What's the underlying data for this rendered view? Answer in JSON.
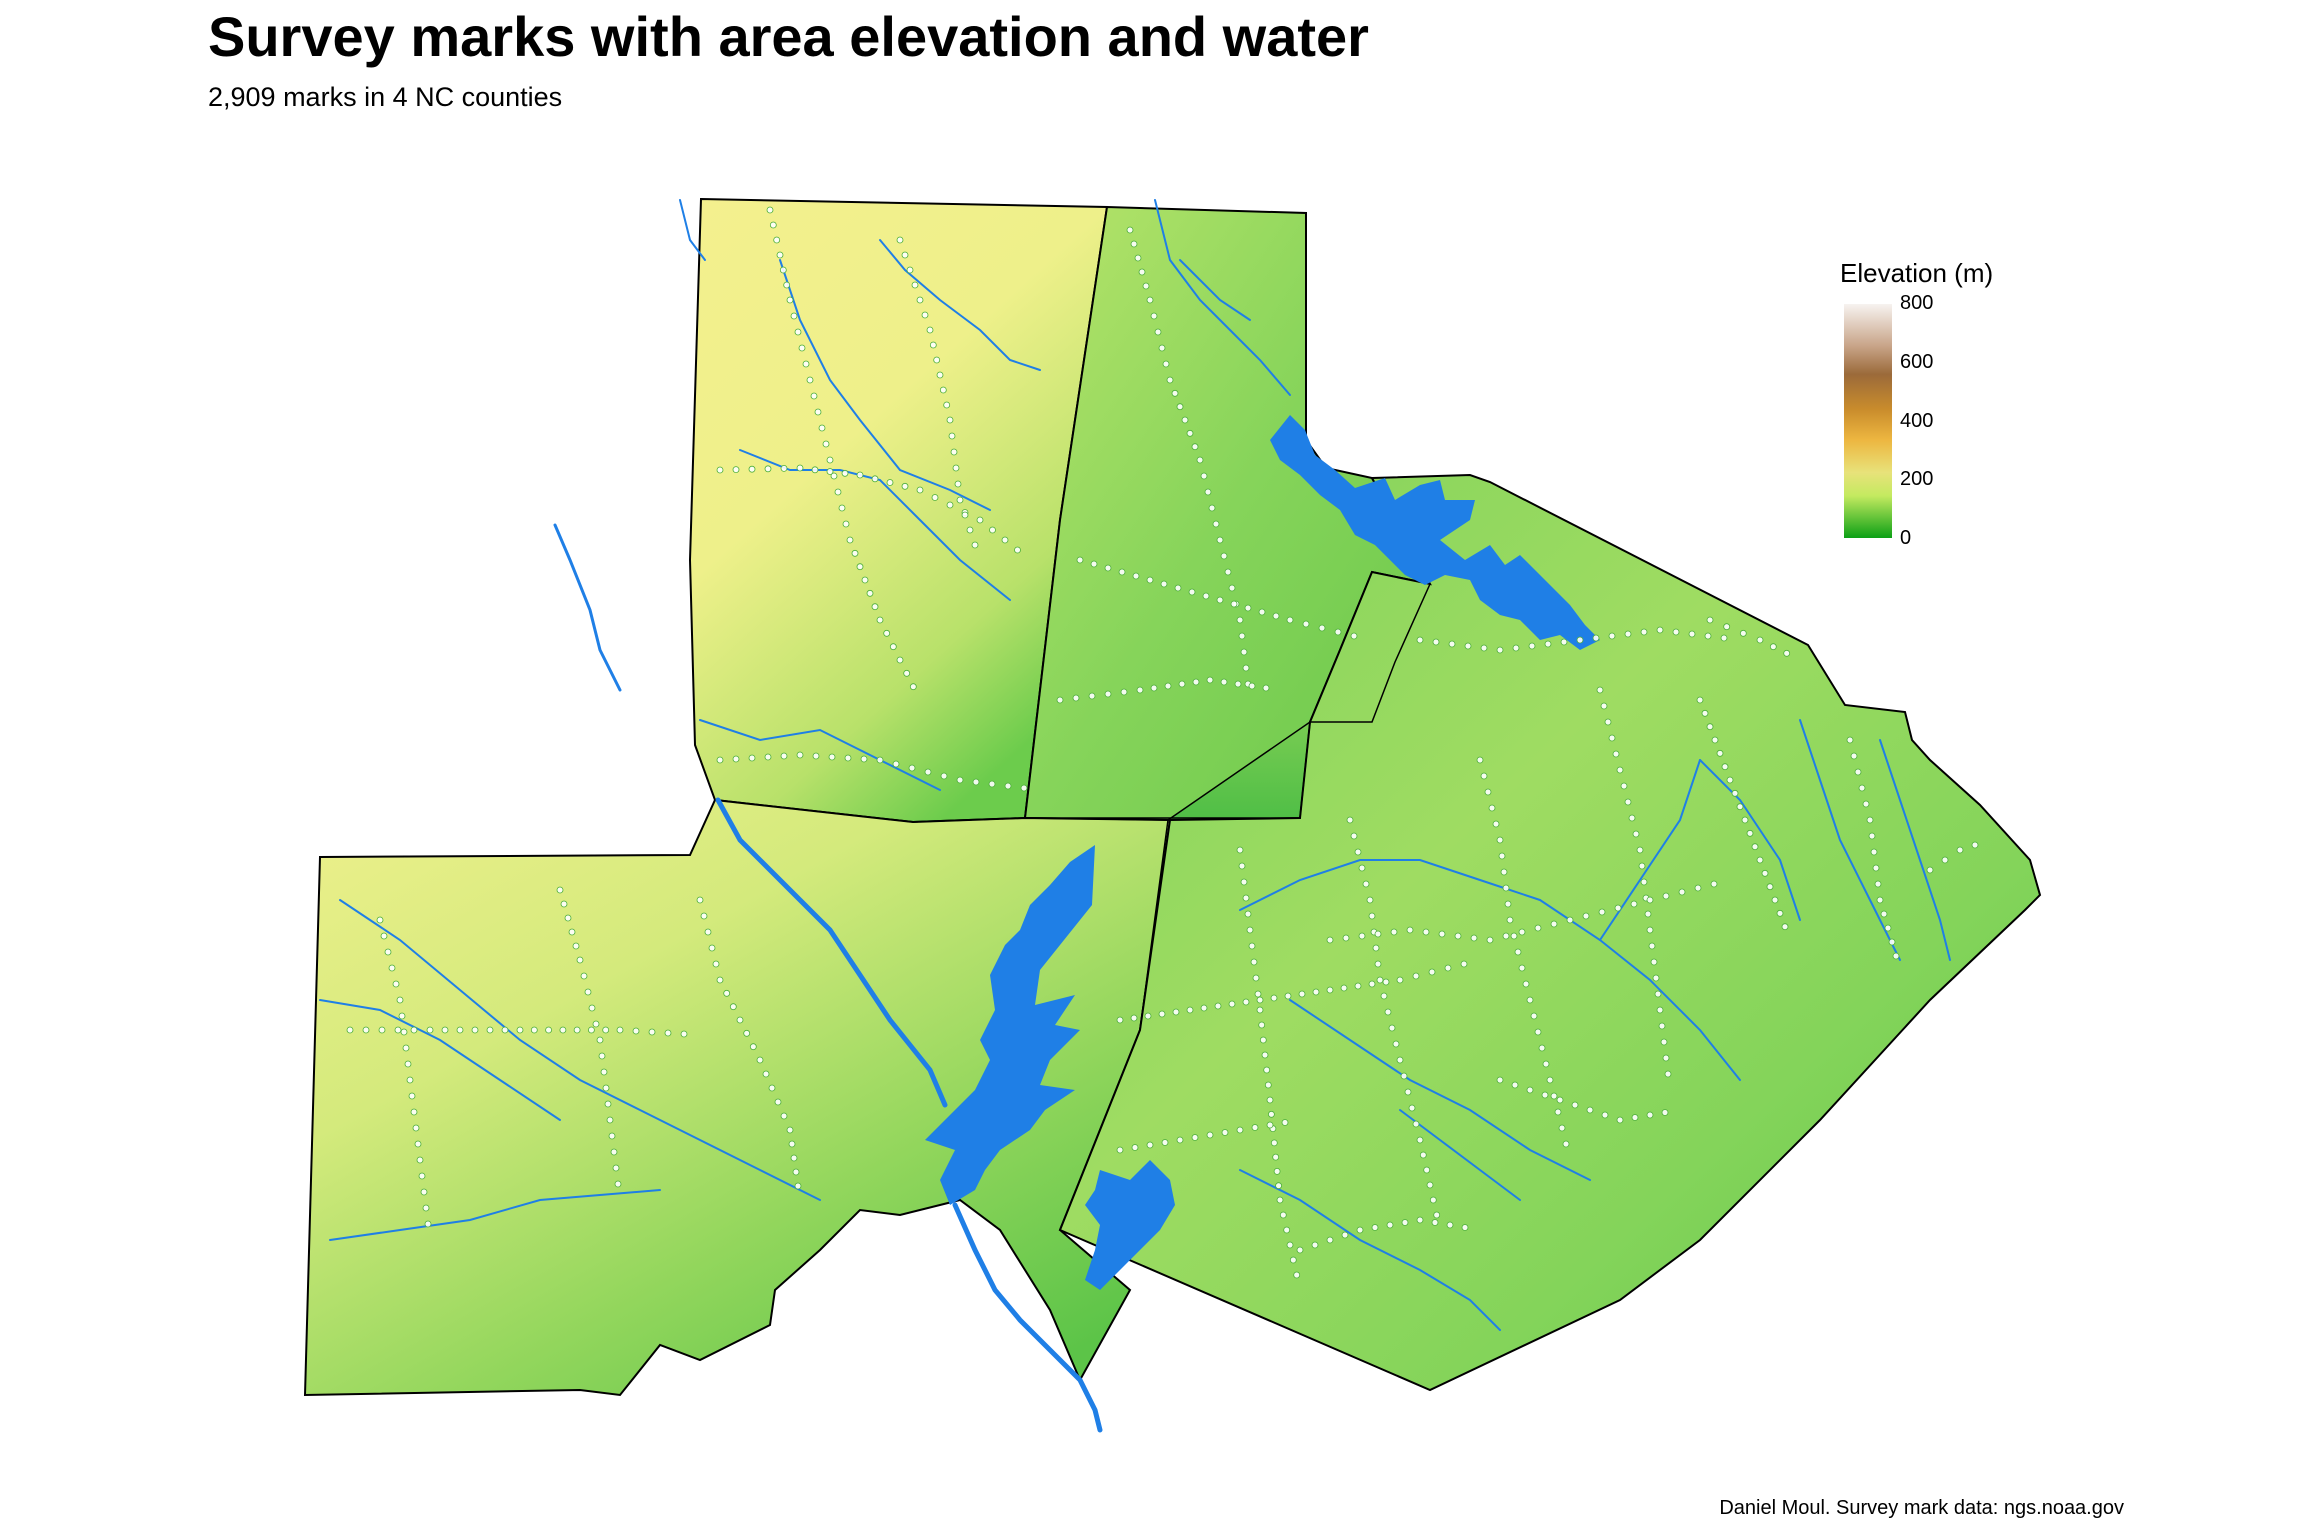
{
  "title": "Survey marks with area elevation and water",
  "subtitle": "2,909 marks in 4 NC counties",
  "caption": "Daniel Moul. Survey mark data: ngs.noaa.gov",
  "legend": {
    "title": "Elevation (m)",
    "ticks": [
      "800",
      "600",
      "400",
      "200",
      "0"
    ],
    "colors": [
      "#f5f0ec",
      "#9b6a3a",
      "#e8b23c",
      "#e4ea74",
      "#1aa81a"
    ]
  },
  "colors": {
    "water": "#1f7fe6",
    "county_border": "#000000",
    "marks_fill": "#ffffff",
    "low": "#3fb83f",
    "mid": "#b4e26a",
    "high": "#f2ee96"
  }
}
